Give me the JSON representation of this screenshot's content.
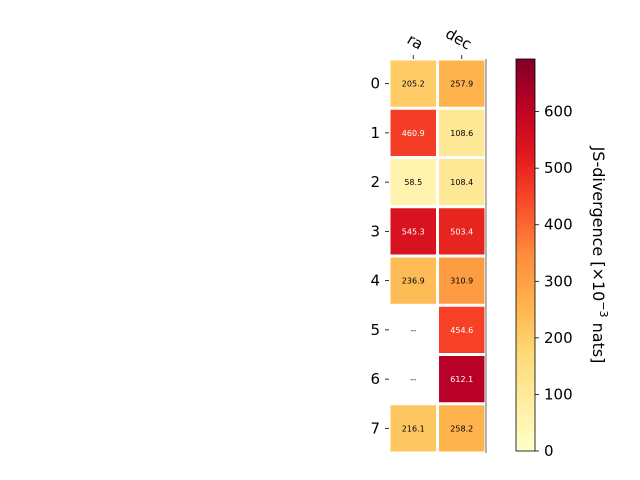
{
  "chart_data": {
    "type": "heatmap",
    "x_categories": [
      "ra",
      "dec"
    ],
    "y_categories": [
      "0",
      "1",
      "2",
      "3",
      "4",
      "5",
      "6",
      "7"
    ],
    "values": [
      [
        205.2,
        257.9
      ],
      [
        460.9,
        108.6
      ],
      [
        58.5,
        108.4
      ],
      [
        545.3,
        503.4
      ],
      [
        236.9,
        310.9
      ],
      [
        null,
        454.6
      ],
      [
        null,
        612.1
      ],
      [
        216.1,
        258.2
      ]
    ],
    "cell_labels": [
      [
        "205.2",
        "257.9"
      ],
      [
        "460.9",
        "108.6"
      ],
      [
        "58.5",
        "108.4"
      ],
      [
        "545.3",
        "503.4"
      ],
      [
        "236.9",
        "310.9"
      ],
      [
        "--",
        "454.6"
      ],
      [
        "--",
        "612.1"
      ],
      [
        "216.1",
        "258.2"
      ]
    ],
    "colorbar": {
      "label_main": "JS-divergence [×10",
      "label_exp": "−3",
      "label_end": " nats]",
      "ticks": [
        "0",
        "100",
        "200",
        "300",
        "400",
        "500",
        "600"
      ],
      "tick_values": [
        0,
        100,
        200,
        300,
        400,
        500,
        600
      ],
      "vmin": 0,
      "vmax": 693,
      "colormap": "YlOrRd"
    },
    "missing_color": "#ffffff"
  }
}
